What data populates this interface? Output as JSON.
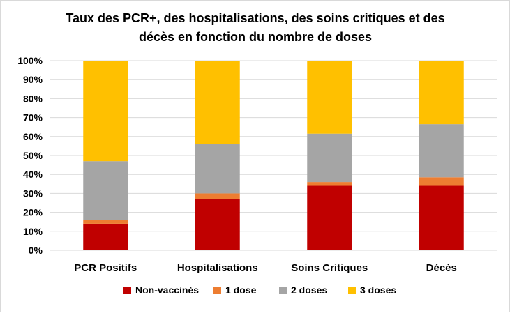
{
  "chart_data": {
    "type": "bar",
    "stacked": true,
    "title_lines": [
      "Taux des PCR+, des hospitalisations, des soins critiques et des",
      "décès en fonction du nombre de doses"
    ],
    "categories": [
      "PCR Positifs",
      "Hospitalisations",
      "Soins Critiques",
      "Décès"
    ],
    "series": [
      {
        "name": "Non-vaccinés",
        "color": "#C00000",
        "values": [
          14,
          27,
          34,
          34
        ]
      },
      {
        "name": "1 dose",
        "color": "#ED7D31",
        "values": [
          2,
          3,
          2,
          4.5
        ]
      },
      {
        "name": "2 doses",
        "color": "#A5A5A5",
        "values": [
          31,
          26,
          25.5,
          28
        ]
      },
      {
        "name": "3 doses",
        "color": "#FFC000",
        "values": [
          53,
          44,
          38.5,
          33.5
        ]
      }
    ],
    "ylim": [
      0,
      100
    ],
    "yticks": [
      "0%",
      "10%",
      "20%",
      "30%",
      "40%",
      "50%",
      "60%",
      "70%",
      "80%",
      "90%",
      "100%"
    ],
    "grid": true,
    "legend_position": "bottom"
  }
}
